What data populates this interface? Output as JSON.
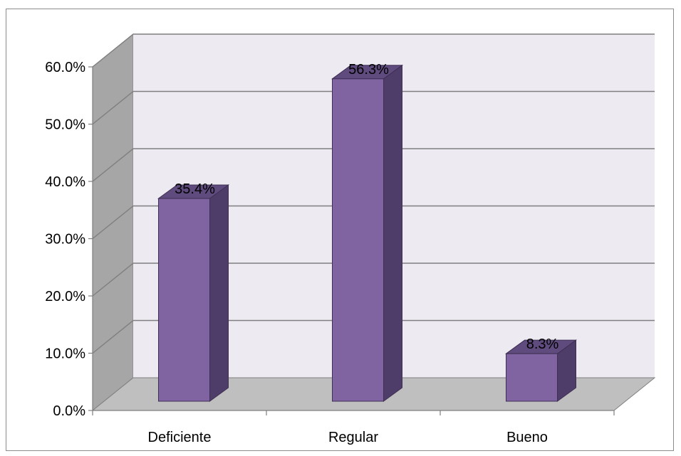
{
  "chart_data": {
    "type": "bar",
    "categories": [
      "Deficiente",
      "Regular",
      "Bueno"
    ],
    "values": [
      35.4,
      56.3,
      8.3
    ],
    "data_labels": [
      "35.4%",
      "56.3%",
      "8.3%"
    ],
    "title": "",
    "xlabel": "",
    "ylabel": "",
    "ylim": [
      0,
      60
    ],
    "yticks": [
      0,
      10,
      20,
      30,
      40,
      50,
      60
    ],
    "ytick_labels": [
      "0.0%",
      "10.0%",
      "20.0%",
      "30.0%",
      "40.0%",
      "50.0%",
      "60.0%"
    ],
    "grid": true,
    "three_d": true,
    "legend": "none"
  },
  "colors": {
    "bar_front": "#8064a2",
    "bar_side": "#4f3d69",
    "bar_top": "#5f4b7e",
    "bar_edge": "#3f3054",
    "back_wall": "#edeaf2",
    "side_wall": "#a6a6a6",
    "floor": "#bfbfbf",
    "grid": "#7f7f7f",
    "axis": "#7f7f7f"
  }
}
